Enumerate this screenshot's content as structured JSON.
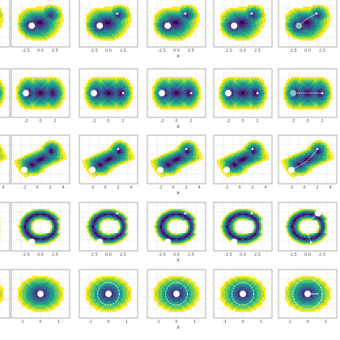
{
  "figure": {
    "rows": 5,
    "columns_visible": 6,
    "background": "#ffffff",
    "colormap": [
      "#fde725",
      "#addc30",
      "#5ec962",
      "#28ae80",
      "#21918c",
      "#2c728e",
      "#3b528b",
      "#472d7b",
      "#440154"
    ]
  },
  "chart_data": [
    {
      "type": "heatmap",
      "row": 1,
      "surface": "skewed double well",
      "xlabel": "x",
      "xticks": [
        "-2.5",
        "0.0",
        "2.5"
      ],
      "xlim": [
        -5.0,
        5.0
      ],
      "ylim": [
        -4.0,
        4.0
      ],
      "panels": [
        {
          "col": 0,
          "markers": [
            {
              "x": -1.5,
              "y": -0.5,
              "size": "large",
              "color": "#ffffff"
            }
          ]
        },
        {
          "col": 1,
          "markers": [
            {
              "x": -1.5,
              "y": -0.5,
              "size": "large",
              "color": "#ffffff"
            }
          ]
        },
        {
          "col": 2,
          "markers": [
            {
              "x": -1.5,
              "y": -0.5,
              "size": "large",
              "color": "#ffffff"
            },
            {
              "x": 1.5,
              "y": 1.5,
              "size": "small",
              "color": "#ffffff"
            }
          ]
        },
        {
          "col": 3,
          "markers": [
            {
              "x": -1.5,
              "y": -0.5,
              "size": "large",
              "color": "#ffffff"
            },
            {
              "x": 1.5,
              "y": 1.5,
              "size": "small",
              "color": "#ffffff"
            }
          ]
        },
        {
          "col": 4,
          "markers": [
            {
              "x": -1.5,
              "y": -0.5,
              "size": "large",
              "color": "#ffffff"
            },
            {
              "x": 1.5,
              "y": 1.5,
              "size": "small",
              "color": "#ffffff"
            }
          ]
        },
        {
          "col": 5,
          "markers": [
            {
              "x": -1.5,
              "y": -0.5,
              "size": "large",
              "color": "#7fc8b6"
            },
            {
              "x": 1.5,
              "y": 1.5,
              "size": "small",
              "color": "#ffffff"
            }
          ],
          "path": [
            [
              -1.5,
              -0.5
            ],
            [
              -0.2,
              0.6
            ],
            [
              1.5,
              1.5
            ]
          ]
        }
      ]
    },
    {
      "type": "heatmap",
      "row": 2,
      "surface": "symmetric double well",
      "xlabel": "x",
      "xticks": [
        "-2",
        "0",
        "2"
      ],
      "xlim": [
        -4,
        4
      ],
      "ylim": [
        -3,
        3
      ],
      "panels": [
        {
          "col": 0,
          "markers": [
            {
              "x": -2,
              "y": 0,
              "size": "large",
              "color": "#ffffff"
            }
          ]
        },
        {
          "col": 1,
          "markers": [
            {
              "x": -2,
              "y": 0,
              "size": "large",
              "color": "#ffffff"
            }
          ]
        },
        {
          "col": 2,
          "markers": [
            {
              "x": -2,
              "y": 0,
              "size": "large",
              "color": "#ffffff"
            },
            {
              "x": 2,
              "y": 0,
              "size": "small",
              "color": "#ffffff"
            }
          ]
        },
        {
          "col": 3,
          "markers": [
            {
              "x": -2,
              "y": 0,
              "size": "large",
              "color": "#ffffff"
            },
            {
              "x": 2,
              "y": 0,
              "size": "small",
              "color": "#ffffff"
            }
          ]
        },
        {
          "col": 4,
          "markers": [
            {
              "x": -2,
              "y": 0,
              "size": "large",
              "color": "#ffffff"
            },
            {
              "x": 2,
              "y": 0,
              "size": "small",
              "color": "#ffffff"
            }
          ]
        },
        {
          "col": 5,
          "markers": [
            {
              "x": -2,
              "y": 0,
              "size": "large",
              "color": "#7fc8b6"
            },
            {
              "x": 2,
              "y": 0,
              "size": "small",
              "color": "#ffffff"
            }
          ],
          "path": [
            [
              -2,
              0
            ],
            [
              0,
              0
            ],
            [
              2,
              0
            ]
          ]
        }
      ]
    },
    {
      "type": "heatmap",
      "row": 3,
      "surface": "tilted valley",
      "xlabel": "x",
      "xticks": [
        "-2",
        "0",
        "2",
        "4"
      ],
      "xlim": [
        -4,
        5
      ],
      "ylim": [
        -3,
        4
      ],
      "panels": [
        {
          "col": 0,
          "markers": [
            {
              "x": -2,
              "y": -1,
              "size": "large",
              "color": "#ffffff"
            }
          ]
        },
        {
          "col": 1,
          "markers": [
            {
              "x": -2,
              "y": -1,
              "size": "large",
              "color": "#ffffff"
            }
          ]
        },
        {
          "col": 2,
          "markers": [
            {
              "x": -2,
              "y": -1,
              "size": "large",
              "color": "#ffffff"
            },
            {
              "x": 2,
              "y": 2,
              "size": "small",
              "color": "#ffffff"
            }
          ]
        },
        {
          "col": 3,
          "markers": [
            {
              "x": -2,
              "y": -1,
              "size": "large",
              "color": "#ffffff"
            },
            {
              "x": 2,
              "y": 2,
              "size": "small",
              "color": "#ffffff"
            }
          ]
        },
        {
          "col": 4,
          "markers": [
            {
              "x": -2,
              "y": -1,
              "size": "large",
              "color": "#ffffff"
            },
            {
              "x": 2,
              "y": 2,
              "size": "small",
              "color": "#ffffff"
            }
          ]
        },
        {
          "col": 5,
          "markers": [
            {
              "x": -2,
              "y": -1,
              "size": "large",
              "color": "#ffffff"
            },
            {
              "x": 2,
              "y": 2,
              "size": "small",
              "color": "#ffffff"
            }
          ],
          "path": [
            [
              -2,
              -1
            ],
            [
              0,
              0
            ],
            [
              1,
              0.8
            ],
            [
              2,
              2
            ]
          ]
        }
      ]
    },
    {
      "type": "heatmap",
      "row": 4,
      "surface": "horseshoe valley",
      "xlabel": "x",
      "xticks": [
        "-2.5",
        "0.0",
        "2.5"
      ],
      "xlim": [
        -5.0,
        5.0
      ],
      "ylim": [
        -4.0,
        4.0
      ],
      "panels": [
        {
          "col": 0,
          "markers": [
            {
              "x": -1.5,
              "y": -2.5,
              "size": "large",
              "color": "#ffffff"
            }
          ]
        },
        {
          "col": 1,
          "markers": [
            {
              "x": -1.5,
              "y": -2.5,
              "size": "large",
              "color": "#ffffff"
            }
          ]
        },
        {
          "col": 2,
          "markers": [
            {
              "x": -1.5,
              "y": -2.5,
              "size": "large",
              "color": "#ffffff"
            },
            {
              "x": 1.5,
              "y": 2.2,
              "size": "small",
              "color": "#ffffff"
            }
          ]
        },
        {
          "col": 3,
          "markers": [
            {
              "x": -1.5,
              "y": -2.5,
              "size": "large",
              "color": "#ffffff"
            },
            {
              "x": 1.5,
              "y": 2.2,
              "size": "small",
              "color": "#ffffff"
            }
          ]
        },
        {
          "col": 4,
          "markers": [
            {
              "x": -1.5,
              "y": -2.5,
              "size": "large",
              "color": "#ffffff"
            },
            {
              "x": 1.5,
              "y": 2.2,
              "size": "small",
              "color": "#ffffff"
            }
          ]
        },
        {
          "col": 5,
          "markers": [
            {
              "x": 1.8,
              "y": 2.2,
              "size": "large",
              "color": "#ffffff"
            },
            {
              "x": 0.6,
              "y": -2.6,
              "size": "small",
              "color": "#ffffff"
            }
          ],
          "path": [
            [
              1.8,
              2.2
            ],
            [
              -0.6,
              0.4
            ],
            [
              0.6,
              -2.6
            ]
          ]
        }
      ]
    },
    {
      "type": "heatmap",
      "row": 5,
      "surface": "single well",
      "xlabel": "x",
      "xticks": [
        "-1",
        "0",
        "1"
      ],
      "xlim": [
        -1.6,
        1.6
      ],
      "ylim": [
        -1.3,
        1.3
      ],
      "panels": [
        {
          "col": 0,
          "markers": [
            {
              "x": 0,
              "y": 0,
              "size": "large",
              "color": "#ffffff"
            }
          ]
        },
        {
          "col": 1,
          "markers": [
            {
              "x": 0,
              "y": 0,
              "size": "large",
              "color": "#ffffff"
            }
          ]
        },
        {
          "col": 2,
          "markers": [
            {
              "x": 0,
              "y": 0,
              "size": "large",
              "color": "#ffffff"
            }
          ],
          "ring": 0.6
        },
        {
          "col": 3,
          "markers": [
            {
              "x": 0,
              "y": 0,
              "size": "large",
              "color": "#ffffff"
            }
          ],
          "ring": 0.6
        },
        {
          "col": 4,
          "markers": [
            {
              "x": 0,
              "y": 0,
              "size": "large",
              "color": "#ffffff"
            }
          ],
          "ring": 0.6
        },
        {
          "col": 5,
          "markers": [
            {
              "x": 0,
              "y": 0,
              "size": "large",
              "color": "#ffffff"
            }
          ],
          "ring": 0.8,
          "arrow": [
            [
              0,
              0
            ],
            [
              0.6,
              0
            ]
          ]
        }
      ]
    }
  ]
}
